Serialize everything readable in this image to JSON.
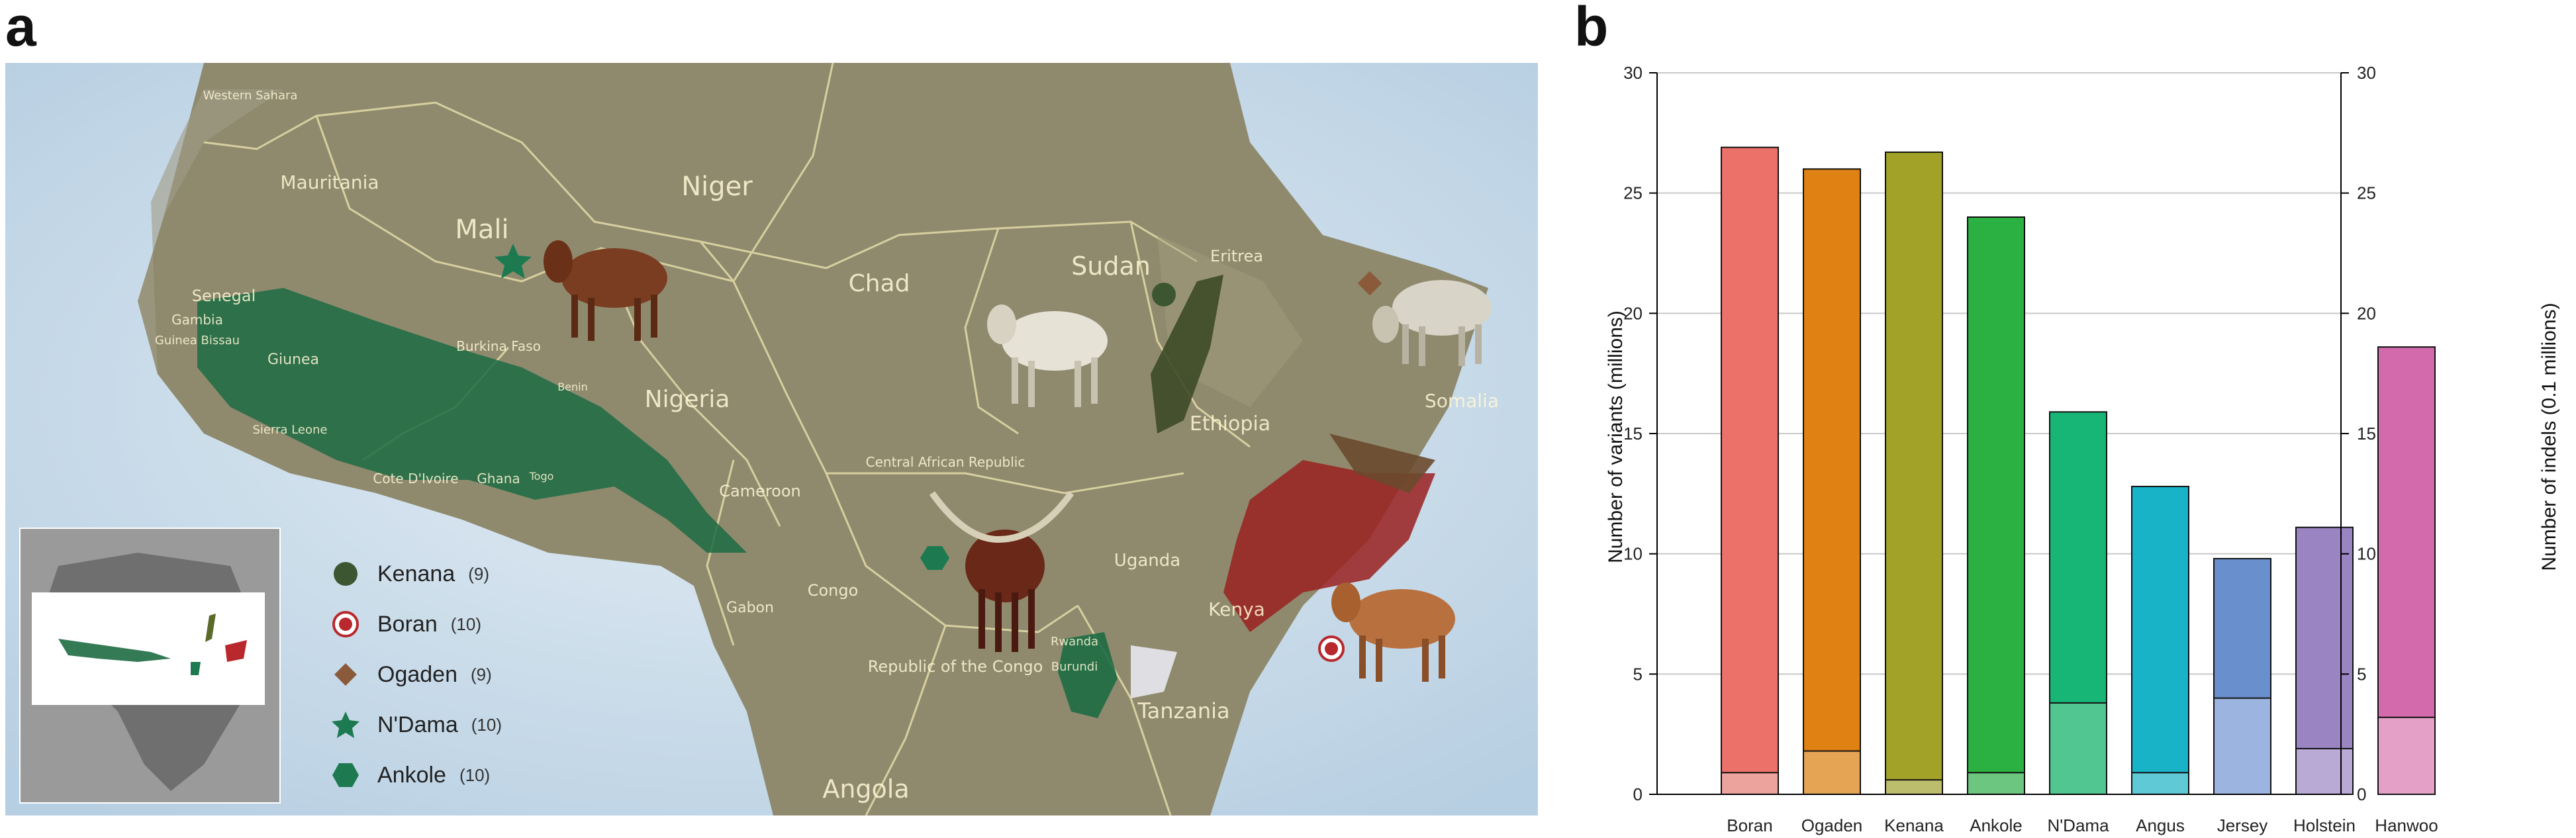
{
  "panel_a_letter": "a",
  "panel_b_letter": "b",
  "map": {
    "country_labels": [
      "Western Sahara",
      "Mauritania",
      "Mali",
      "Niger",
      "Chad",
      "Sudan",
      "Eritrea",
      "Senegal",
      "Gambia",
      "Guinea Bissau",
      "Giunea",
      "Sierra Leone",
      "Cote D'Ivoire",
      "Ghana",
      "Togo",
      "Benin",
      "Burkina Faso",
      "Nigeria",
      "Cameroon",
      "Central African Republic",
      "Ethiopia",
      "Somalia",
      "Uganda",
      "Kenya",
      "Rwanda",
      "Burundi",
      "Tanzania",
      "Congo",
      "Gabon",
      "Republic of the Congo",
      "Angola"
    ],
    "legend": [
      {
        "name": "Kenana",
        "count": "(9)",
        "symbol": "circle",
        "color": "#3d5632"
      },
      {
        "name": "Boran",
        "count": "(10)",
        "symbol": "ring",
        "color": "#b8282c"
      },
      {
        "name": "Ogaden",
        "count": "(9)",
        "symbol": "diamond",
        "color": "#8b5a3a"
      },
      {
        "name": "N'Dama",
        "count": "(10)",
        "symbol": "star",
        "color": "#1d7a50"
      },
      {
        "name": "Ankole",
        "count": "(10)",
        "symbol": "hexagon",
        "color": "#1d7a50"
      }
    ]
  },
  "chart_data": {
    "type": "bar",
    "categories": [
      "Boran",
      "Ogaden",
      "Kenana",
      "Ankole",
      "N'Dama",
      "Angus",
      "Jersey",
      "Holstein",
      "Hanwoo"
    ],
    "series": [
      {
        "values": [
          26.9,
          26.0,
          26.7,
          24.0,
          15.9,
          12.8,
          9.8,
          11.1,
          18.6
        ]
      },
      {
        "values": [
          0.9,
          1.8,
          0.6,
          0.9,
          3.8,
          0.9,
          4.0,
          1.9,
          3.2
        ]
      }
    ],
    "colors": [
      "#ec7168",
      "#df8213",
      "#a2a228",
      "#2bb042",
      "#17b576",
      "#19b3c8",
      "#6a8fcd",
      "#9a84c2",
      "#d36aac"
    ],
    "light_colors": [
      "#eca39e",
      "#e4a454",
      "#bdbd6e",
      "#6cc680",
      "#52c690",
      "#5fc9d6",
      "#9cb4e0",
      "#b9a9d5",
      "#e5a0c8"
    ],
    "ylabel": "Number of variants (millions)",
    "y2label": "Number of indels (0.1 millions)",
    "ylim": [
      0,
      30
    ],
    "yticks": [
      0,
      5,
      10,
      15,
      20,
      25,
      30
    ],
    "grid": true
  }
}
